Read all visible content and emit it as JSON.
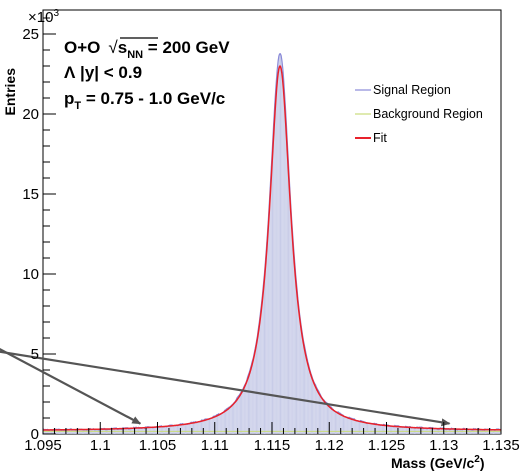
{
  "chart_data": {
    "type": "line",
    "xlabel_main": "Mass (GeV/c",
    "xlabel_sup": "2",
    "xlabel_close": ")",
    "ylabel": "Entries",
    "y_exponent_base": "×10",
    "y_exponent_power": "3",
    "xlim": [
      1.095,
      1.135
    ],
    "ylim": [
      0,
      26.5
    ],
    "x_ticks": [
      "1.095",
      "1.1",
      "1.105",
      "1.11",
      "1.115",
      "1.12",
      "1.125",
      "1.13",
      "1.135"
    ],
    "x_tick_values": [
      1.095,
      1.1,
      1.105,
      1.11,
      1.115,
      1.12,
      1.125,
      1.13,
      1.135
    ],
    "y_ticks": [
      "0",
      "5",
      "10",
      "15",
      "20",
      "25"
    ],
    "y_tick_values": [
      0,
      5,
      10,
      15,
      20,
      25
    ],
    "annotation": {
      "line1_prefix": "O+O",
      "line1_sqrt": "√",
      "line1_s": "s",
      "line1_sub": "NN",
      "line1_suffix": " = 200 GeV",
      "line2": "Λ |y| < 0.9",
      "line3_p": "p",
      "line3_sub": "T",
      "line3_suffix": " = 0.75 - 1.0 GeV/c"
    },
    "legend": {
      "placement": "top-right",
      "entries": [
        {
          "label": "Signal Region",
          "color": "#8a8ad8"
        },
        {
          "label": "Background Region",
          "color": "#c9dc7a"
        },
        {
          "label": "Fit",
          "color": "#e8222c"
        }
      ]
    },
    "peak": {
      "mean": 1.1157,
      "amplitude_signal": 23.8,
      "amplitude_fit": 23.0,
      "baseline": 0.18,
      "width_sigma": 0.00115
    },
    "arrows": [
      {
        "from": [
          1.082,
          8.8
        ],
        "to": [
          1.1035,
          0.65
        ]
      },
      {
        "from": [
          1.082,
          6.2
        ],
        "to": [
          1.1305,
          0.65
        ]
      }
    ],
    "colors": {
      "histogram_fill": "#c8cce8",
      "signal_line": "#8a8ad8",
      "background_line": "#c9dc7a",
      "fit_line": "#e8222c",
      "arrow": "#555555"
    }
  }
}
